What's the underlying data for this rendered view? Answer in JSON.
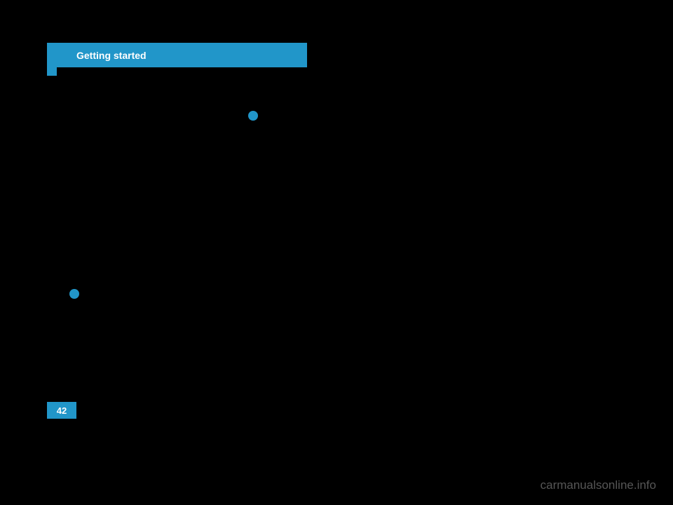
{
  "header": {
    "title": "Getting started"
  },
  "page": {
    "number": "42"
  },
  "watermark": {
    "text": "carmanualsonline.info"
  }
}
